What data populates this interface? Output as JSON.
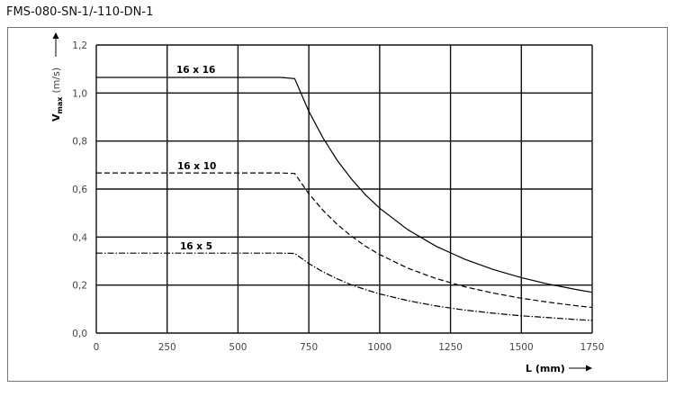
{
  "title": "FMS-080-SN-1/-110-DN-1",
  "chart_data": {
    "type": "line",
    "title": "FMS-080-SN-1/-110-DN-1",
    "xlabel": "L (mm)",
    "ylabel_main": "V",
    "ylabel_sub": "max",
    "ylabel_unit": "(m/s)",
    "xlim": [
      0,
      1750
    ],
    "ylim": [
      0,
      1.2
    ],
    "xticks": [
      0,
      250,
      500,
      750,
      1000,
      1250,
      1500,
      1750
    ],
    "xtick_labels": [
      "0",
      "250",
      "500",
      "750",
      "1000",
      "1250",
      "1500",
      "1750"
    ],
    "yticks": [
      0,
      0.2,
      0.4,
      0.6,
      0.8,
      1.0,
      1.2
    ],
    "ytick_labels": [
      "0,0",
      "0,2",
      "0,4",
      "0,6",
      "0,8",
      "1,0",
      "1,2"
    ],
    "grid": true,
    "x": [
      0,
      650,
      700,
      750,
      800,
      850,
      900,
      950,
      1000,
      1100,
      1200,
      1300,
      1400,
      1500,
      1600,
      1700,
      1750
    ],
    "series": [
      {
        "name": "16 x 16",
        "style": "solid",
        "values": [
          1.065,
          1.065,
          1.06,
          0.924,
          0.813,
          0.72,
          0.642,
          0.576,
          0.52,
          0.43,
          0.361,
          0.308,
          0.265,
          0.231,
          0.203,
          0.18,
          0.17
        ]
      },
      {
        "name": "16 x 10",
        "style": "dashed",
        "values": [
          0.667,
          0.667,
          0.665,
          0.581,
          0.511,
          0.453,
          0.404,
          0.362,
          0.327,
          0.27,
          0.227,
          0.193,
          0.167,
          0.145,
          0.128,
          0.113,
          0.107
        ]
      },
      {
        "name": "16 x 5",
        "style": "dash-dot",
        "values": [
          0.333,
          0.333,
          0.332,
          0.29,
          0.255,
          0.226,
          0.201,
          0.181,
          0.163,
          0.135,
          0.113,
          0.096,
          0.083,
          0.072,
          0.064,
          0.056,
          0.053
        ]
      }
    ]
  }
}
